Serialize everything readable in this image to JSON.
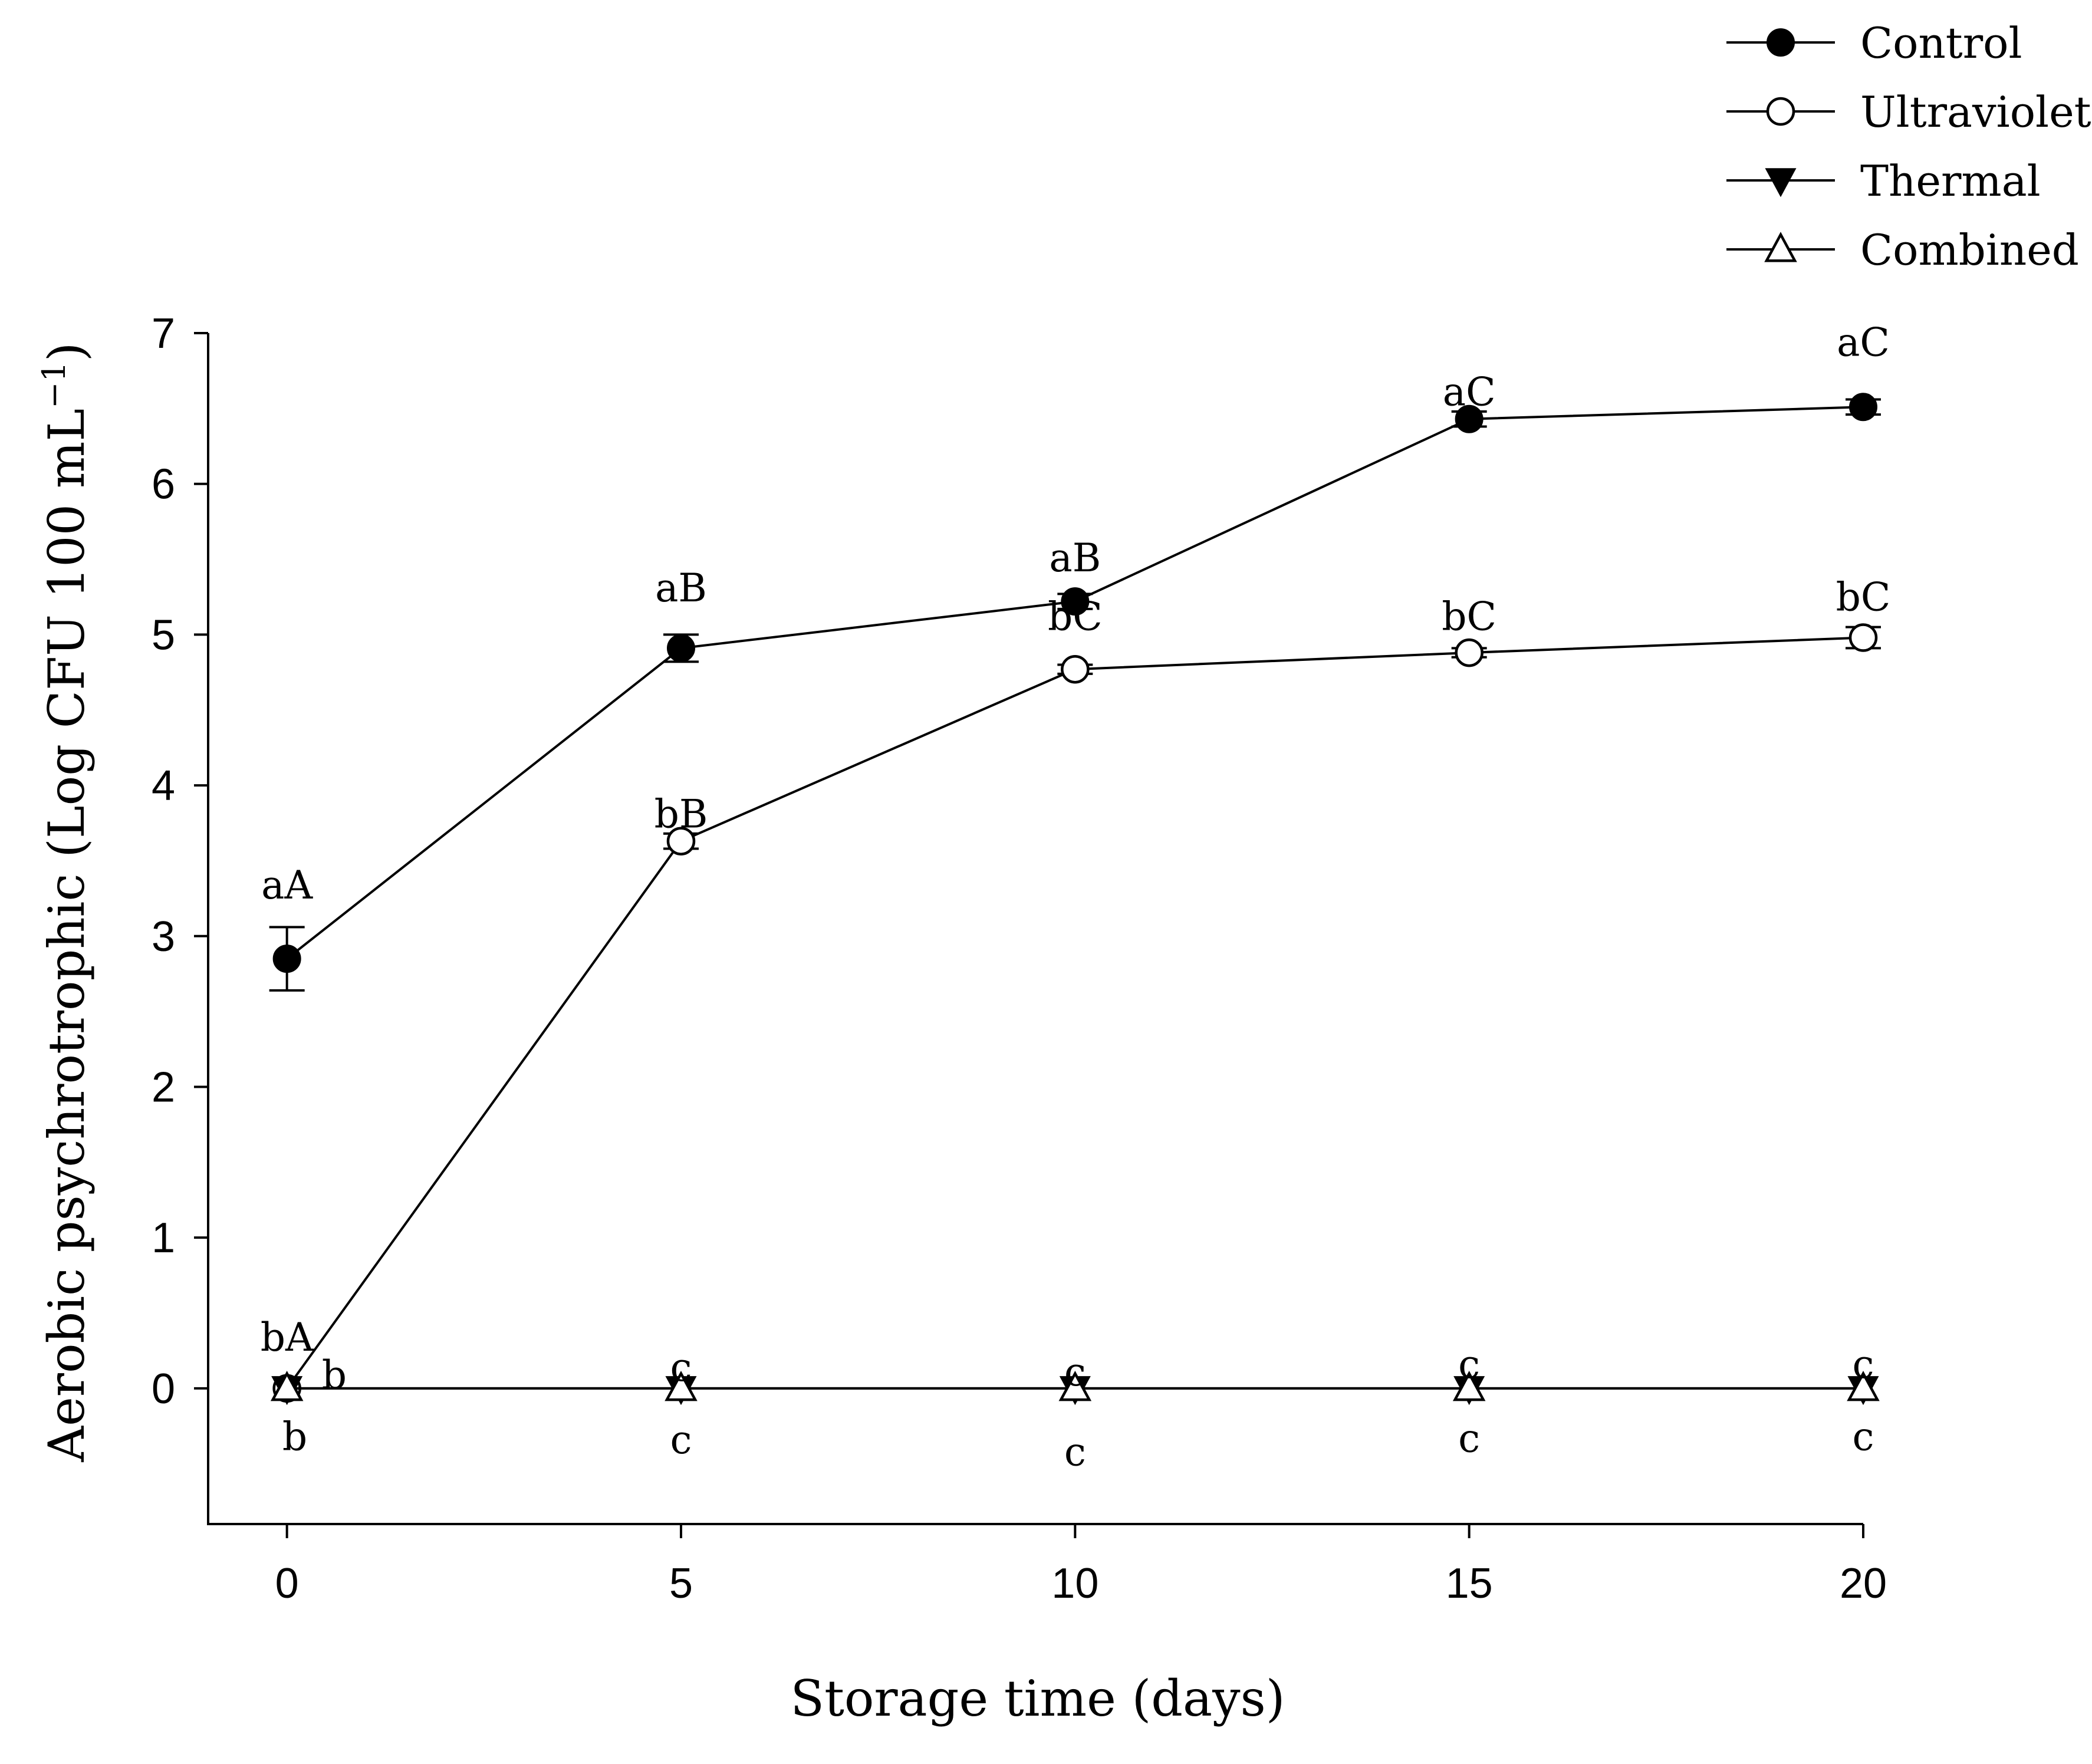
{
  "chart_data": {
    "type": "line",
    "title": "",
    "xlabel": "Storage time (days)",
    "ylabel_main": "Aerobic psychrotrophic (Log CFU 100 mL",
    "ylabel_sup": "−1",
    "ylabel_close": ")",
    "x": [
      0,
      5,
      10,
      15,
      20
    ],
    "xlim": [
      -1,
      20
    ],
    "ylim": [
      -0.9,
      7
    ],
    "xticks": [
      0,
      5,
      10,
      15,
      20
    ],
    "yticks": [
      0,
      1,
      2,
      3,
      4,
      5,
      6,
      7
    ],
    "grid": false,
    "legend_position": "top-right",
    "series": [
      {
        "name": "Control",
        "marker": "circle-filled",
        "values": [
          2.85,
          4.91,
          5.22,
          6.43,
          6.51
        ],
        "errors": [
          0.21,
          0.09,
          0.05,
          0.05,
          0.05
        ]
      },
      {
        "name": "Ultraviolet",
        "marker": "circle-open",
        "values": [
          0,
          3.63,
          4.77,
          4.88,
          4.98
        ],
        "errors": [
          0,
          0.05,
          0.03,
          0.03,
          0.07
        ]
      },
      {
        "name": "Thermal",
        "marker": "triangle-down-filled",
        "values": [
          0,
          0,
          0,
          0,
          0
        ],
        "errors": [
          0,
          0,
          0,
          0,
          0
        ]
      },
      {
        "name": "Combined",
        "marker": "triangle-up-open",
        "values": [
          0,
          0,
          0,
          0,
          0
        ],
        "errors": [
          0,
          0,
          0,
          0,
          0
        ]
      }
    ],
    "annotations": [
      {
        "text": "aA",
        "x": 0,
        "y": 3.25
      },
      {
        "text": "aB",
        "x": 5,
        "y": 5.22
      },
      {
        "text": "aB",
        "x": 10,
        "y": 5.42
      },
      {
        "text": "aC",
        "x": 15,
        "y": 6.52
      },
      {
        "text": "aC",
        "x": 20,
        "y": 6.85
      },
      {
        "text": "bB",
        "x": 5,
        "y": 3.72
      },
      {
        "text": "bC",
        "x": 10,
        "y": 5.03
      },
      {
        "text": "bC",
        "x": 15,
        "y": 5.03
      },
      {
        "text": "bC",
        "x": 20,
        "y": 5.16
      },
      {
        "text": "bA",
        "x": 0,
        "y": 0.25
      },
      {
        "text": "b",
        "x": 0.6,
        "y": 0.0
      },
      {
        "text": "b",
        "x": 0.1,
        "y": -0.41
      },
      {
        "text": "c",
        "x": 5,
        "y": 0.05
      },
      {
        "text": "c",
        "x": 10,
        "y": 0.02
      },
      {
        "text": "c",
        "x": 15,
        "y": 0.07
      },
      {
        "text": "c",
        "x": 20,
        "y": 0.07
      },
      {
        "text": "c",
        "x": 5,
        "y": -0.43
      },
      {
        "text": "c",
        "x": 10,
        "y": -0.51
      },
      {
        "text": "c",
        "x": 15,
        "y": -0.42
      },
      {
        "text": "c",
        "x": 20,
        "y": -0.41
      }
    ]
  }
}
